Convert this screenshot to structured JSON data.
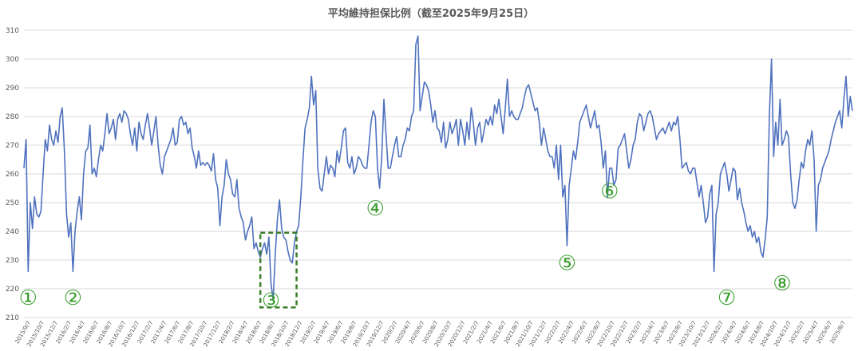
{
  "chart_data": {
    "type": "line",
    "title": "平均維持担保比例（截至2025年9月25日）",
    "ylim": [
      210,
      310
    ],
    "y_ticks": [
      "210",
      "220",
      "230",
      "240",
      "250",
      "260",
      "270",
      "280",
      "290",
      "300",
      "310"
    ],
    "grid": "horizontal",
    "line_color": "#4f72be",
    "annotation_color": "#3a9d2f",
    "x_ticks": [
      "2015/9/7",
      "2015/10/7",
      "2015/12/7",
      "2016/2/7",
      "2016/4/7",
      "2016/6/7",
      "2016/8/7",
      "2016/10/7",
      "2016/12/7",
      "2017/2/7",
      "2017/4/7",
      "2017/6/7",
      "2017/8/7",
      "2017/10/7",
      "2017/12/7",
      "2018/2/7",
      "2018/4/7",
      "2018/6/7",
      "2018/8/7",
      "2018/10/7",
      "2018/12/7",
      "2019/2/7",
      "2019/4/7",
      "2019/6/7",
      "2019/8/7",
      "2019/10/7",
      "2019/12/7",
      "2020/2/7",
      "2020/4/7",
      "2020/6/7",
      "2020/8/7",
      "2020/10/7",
      "2020/12/7",
      "2021/2/7",
      "2021/4/7",
      "2021/6/7",
      "2021/8/7",
      "2021/10/7",
      "2021/12/7",
      "2022/2/7",
      "2022/4/7",
      "2022/6/7",
      "2022/8/7",
      "2022/10/7",
      "2022/12/7",
      "2023/2/7",
      "2023/4/7",
      "2023/6/7",
      "2023/8/7",
      "2023/10/7",
      "2023/12/7",
      "2024/2/7",
      "2024/4/7",
      "2024/6/7",
      "2024/8/7",
      "2024/10/7",
      "2024/12/7",
      "2025/2/7",
      "2025/4/7",
      "2025/6/7",
      "2025/8/7"
    ],
    "series": [
      {
        "values": [
          262,
          272,
          226,
          250,
          241,
          252,
          246,
          245,
          247,
          260,
          272,
          268,
          277,
          272,
          270,
          275,
          271,
          280,
          283,
          268,
          246,
          238,
          243,
          226,
          240,
          247,
          252,
          244,
          260,
          268,
          269,
          277,
          260,
          262,
          259,
          265,
          270,
          268,
          274,
          281,
          274,
          276,
          279,
          272,
          279,
          281,
          278,
          282,
          281,
          279,
          274,
          270,
          276,
          268,
          278,
          274,
          272,
          277,
          281,
          276,
          270,
          275,
          280,
          270,
          263,
          260,
          266,
          268,
          270,
          272,
          276,
          270,
          271,
          279,
          280,
          277,
          278,
          274,
          276,
          269,
          266,
          262,
          268,
          263,
          264,
          263,
          264,
          263,
          261,
          267,
          258,
          255,
          242,
          252,
          256,
          265,
          260,
          258,
          253,
          252,
          258,
          248,
          245,
          243,
          237,
          240,
          242,
          245,
          234,
          236,
          233,
          231,
          234,
          236,
          232,
          238,
          222,
          216,
          232,
          244,
          251,
          241,
          238,
          237,
          233,
          230,
          229,
          236,
          240,
          242,
          252,
          265,
          276,
          279,
          283,
          294,
          284,
          289,
          262,
          255,
          254,
          260,
          266,
          260,
          263,
          262,
          259,
          268,
          264,
          269,
          275,
          276,
          264,
          262,
          266,
          260,
          262,
          266,
          265,
          263,
          262,
          262,
          270,
          278,
          282,
          280,
          262,
          255,
          266,
          286,
          274,
          262,
          262,
          266,
          270,
          273,
          266,
          266,
          270,
          272,
          276,
          275,
          280,
          282,
          305,
          308,
          282,
          287,
          292,
          291,
          289,
          284,
          278,
          282,
          276,
          275,
          271,
          278,
          269,
          272,
          278,
          274,
          276,
          279,
          270,
          279,
          275,
          270,
          278,
          272,
          283,
          278,
          270,
          276,
          278,
          271,
          275,
          279,
          277,
          280,
          277,
          284,
          281,
          286,
          280,
          274,
          283,
          293,
          280,
          282,
          280,
          279,
          279,
          281,
          283,
          287,
          290,
          291,
          288,
          285,
          282,
          283,
          278,
          270,
          276,
          272,
          268,
          266,
          266,
          262,
          270,
          258,
          270,
          252,
          256,
          235,
          256,
          262,
          268,
          265,
          271,
          278,
          280,
          282,
          284,
          280,
          276,
          279,
          282,
          276,
          277,
          271,
          262,
          268,
          252,
          262,
          262,
          256,
          258,
          269,
          270,
          272,
          274,
          268,
          262,
          265,
          270,
          272,
          278,
          281,
          280,
          275,
          278,
          281,
          282,
          280,
          276,
          272,
          274,
          275,
          276,
          274,
          276,
          278,
          275,
          278,
          277,
          280,
          272,
          262,
          263,
          264,
          261,
          260,
          262,
          262,
          257,
          252,
          256,
          250,
          243,
          245,
          253,
          256,
          226,
          246,
          250,
          260,
          262,
          264,
          260,
          254,
          258,
          262,
          261,
          251,
          255,
          250,
          247,
          243,
          240,
          242,
          238,
          240,
          236,
          238,
          233,
          231,
          237,
          245,
          280,
          300,
          266,
          278,
          270,
          286,
          270,
          272,
          275,
          273,
          260,
          250,
          248,
          251,
          258,
          264,
          262,
          268,
          272,
          270,
          275,
          265,
          240,
          256,
          258,
          262,
          264,
          266,
          268,
          272,
          275,
          278,
          280,
          282,
          276,
          286,
          294,
          280,
          287,
          282
        ]
      }
    ],
    "annotations": [
      "①",
      "②",
      "③",
      "④",
      "⑤",
      "⑥",
      "⑦",
      "⑧"
    ]
  }
}
